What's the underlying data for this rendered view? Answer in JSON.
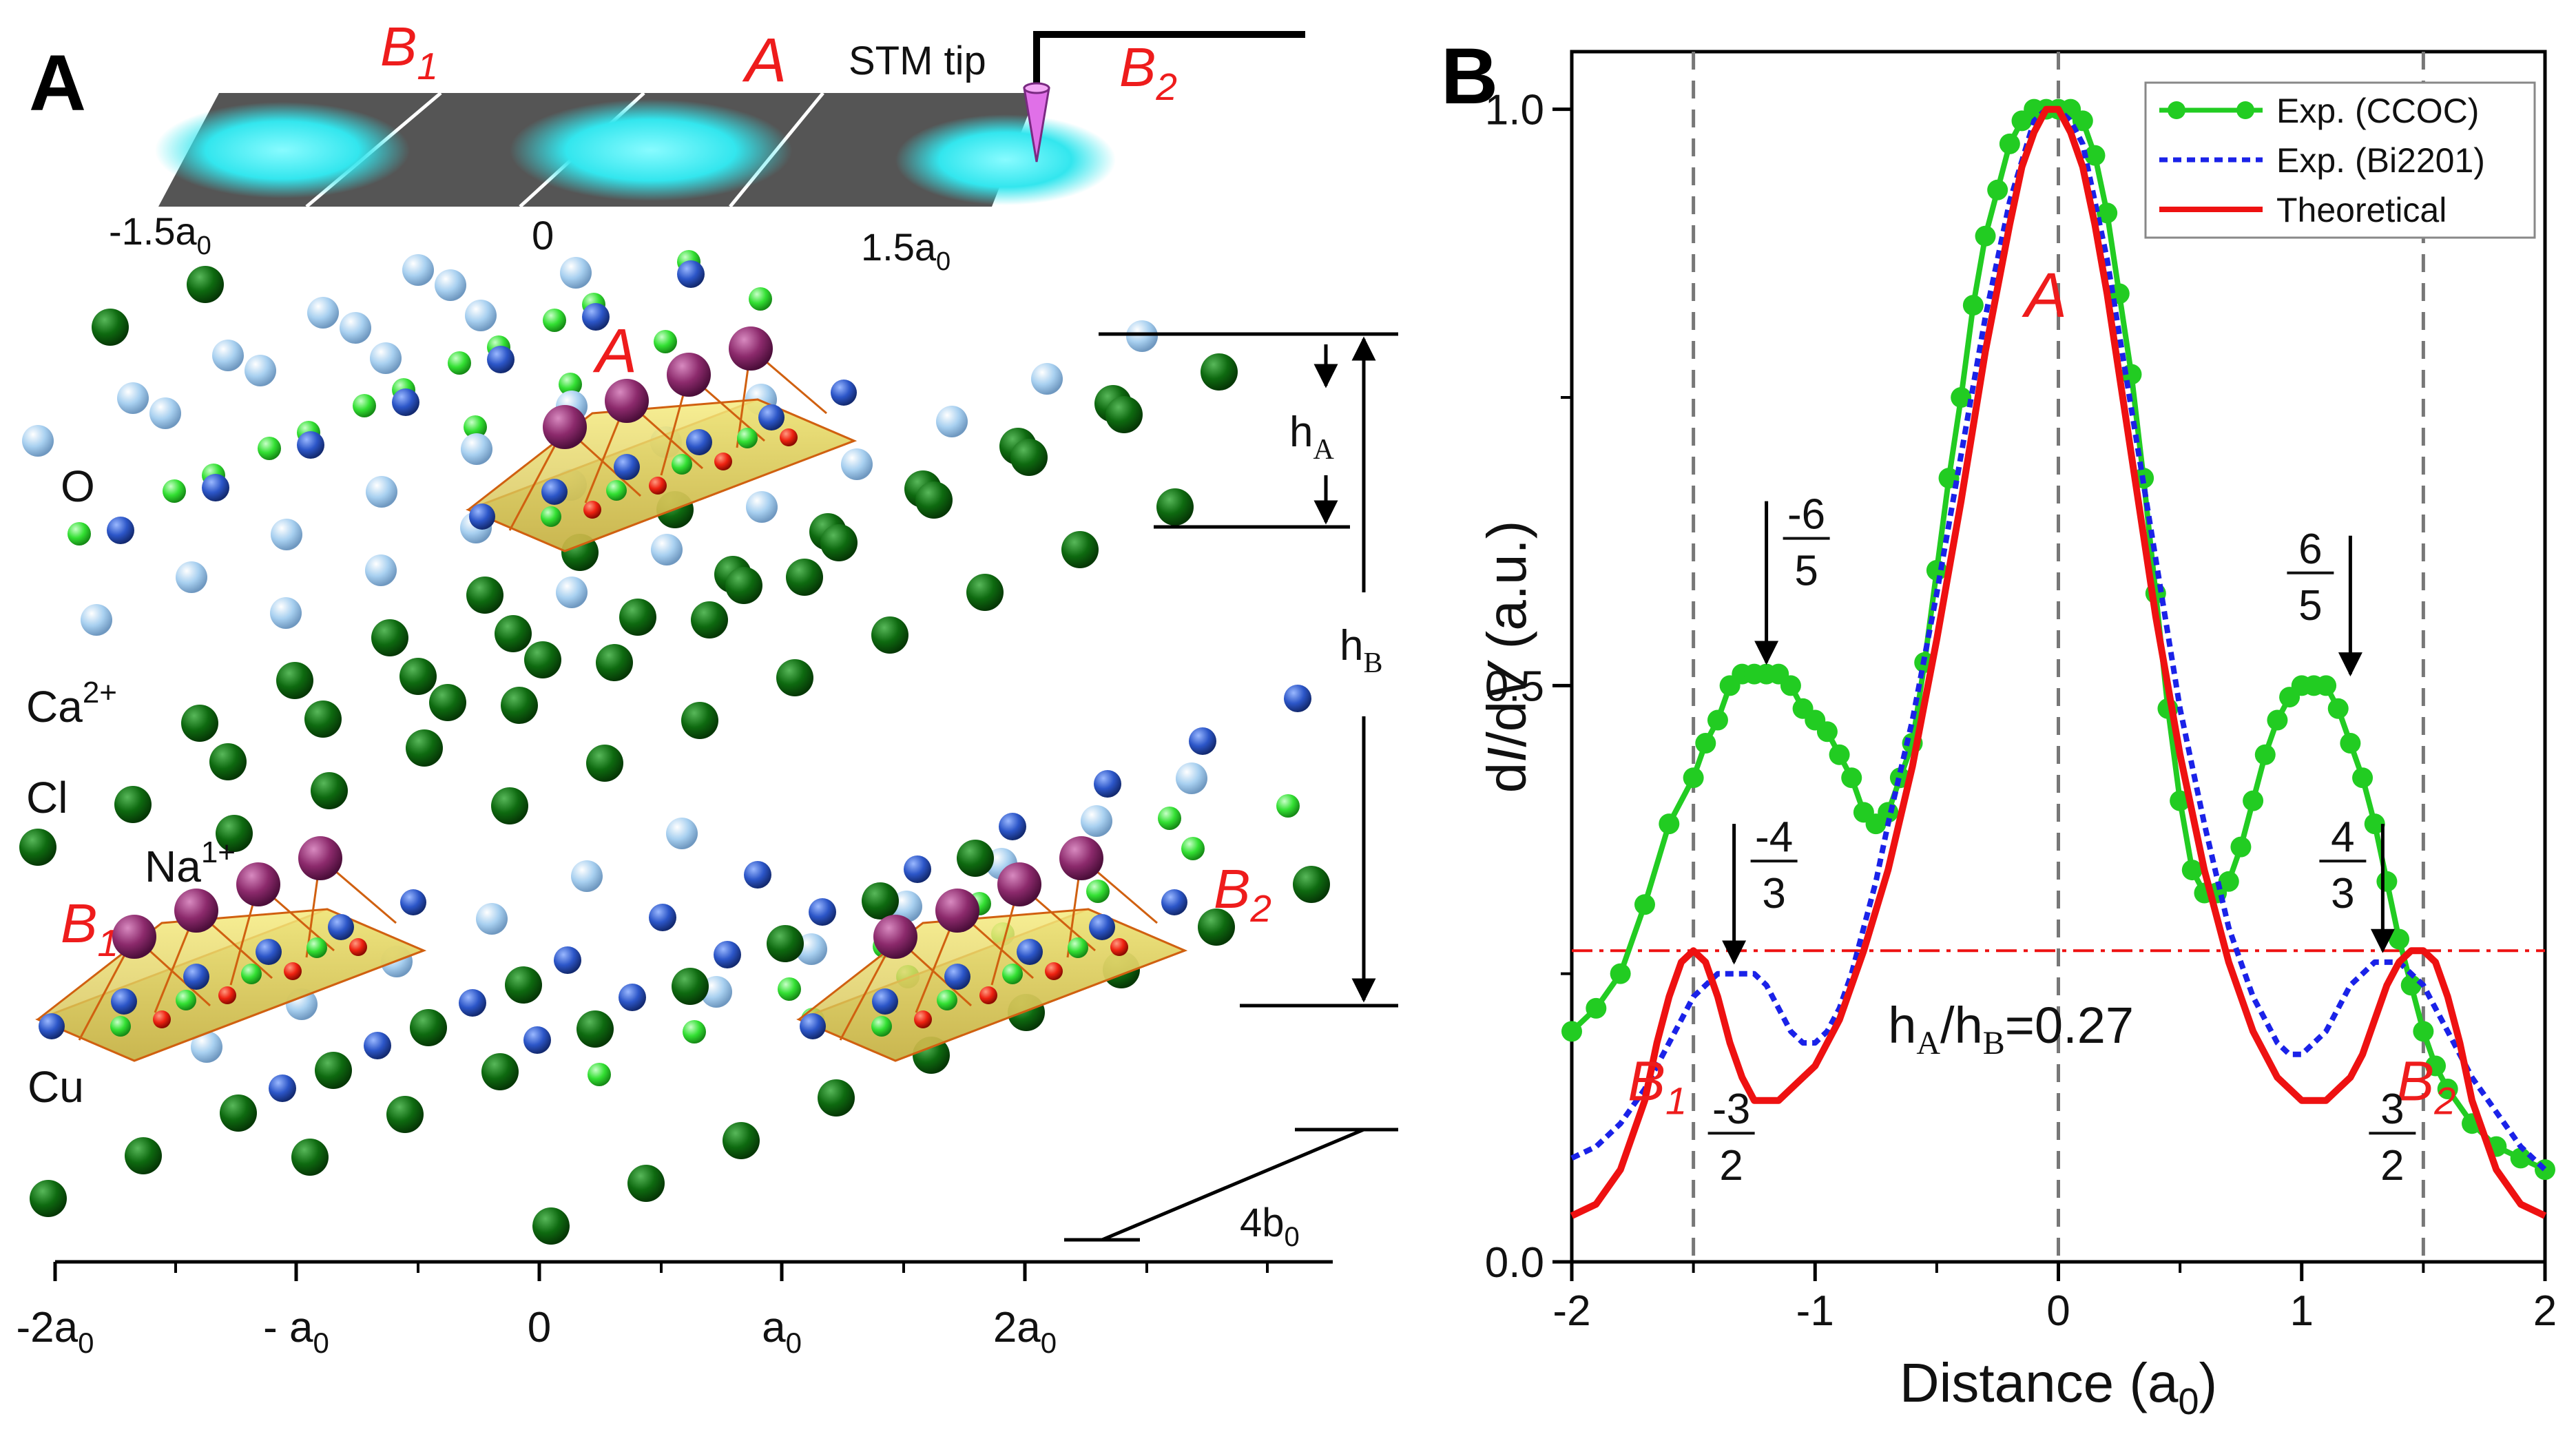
{
  "panel_a": {
    "letter": "A",
    "stm_label": "STM tip",
    "top_sites": {
      "b1": "B",
      "b1_sub": "1",
      "a": "A",
      "b2": "B",
      "b2_sub": "2"
    },
    "top_ticks": {
      "left": "-1.5a",
      "left_sub": "0",
      "center": "0",
      "right": "1.5a",
      "right_sub": "0"
    },
    "species": {
      "o": "O",
      "ca": "Ca",
      "ca_sup": "2+",
      "cl": "Cl",
      "na": "Na",
      "na_sup": "1+",
      "cu": "Cu"
    },
    "octahedra": {
      "a": "A",
      "b1": "B",
      "b1_sub": "1",
      "b2": "B",
      "b2_sub": "2"
    },
    "heights": {
      "ha": "h",
      "ha_sub": "A",
      "hb": "h",
      "hb_sub": "B"
    },
    "period": {
      "main": "4b",
      "sub": "0"
    },
    "axis_ticks": [
      {
        "main": "-2a",
        "sub": "0"
      },
      {
        "main": "- a",
        "sub": "0"
      },
      {
        "main": "0",
        "sub": ""
      },
      {
        "main": "a",
        "sub": "0"
      },
      {
        "main": "2a",
        "sub": "0"
      }
    ],
    "colors": {
      "cl": "#0e6a10",
      "o": "#a8d0f0",
      "cu": "#2c56c8",
      "ca": "#33e033",
      "na": "#8c2a6c",
      "apex": "#ee2211",
      "tip": "#e070e8",
      "spot": "#33e6ee"
    }
  },
  "chart_data": {
    "panel_letter": "B",
    "type": "line",
    "xlabel": "Distance (a",
    "xlabel_sub": "0",
    "xlabel_end": ")",
    "ylabel": "dI/dV (a.u.)",
    "ylabel_parts": [
      "d",
      "I",
      "/d",
      "V",
      " (a.u.)"
    ],
    "xlim": [
      -2,
      2
    ],
    "ylim": [
      0,
      1.05
    ],
    "xticks": [
      -2,
      -1,
      0,
      1,
      2
    ],
    "xtick_labels": [
      "-2",
      "-1",
      "0",
      "1",
      "2"
    ],
    "yticks": [
      0,
      0.5,
      1.0
    ],
    "ytick_labels": [
      "0.0",
      "0.5",
      "1.0"
    ],
    "series": [
      {
        "name": "Exp. (CCOC)",
        "color": "#22cc22",
        "style": "solid-markers",
        "x": [
          -2.0,
          -1.9,
          -1.8,
          -1.7,
          -1.6,
          -1.5,
          -1.45,
          -1.4,
          -1.35,
          -1.3,
          -1.25,
          -1.2,
          -1.15,
          -1.1,
          -1.05,
          -1.0,
          -0.95,
          -0.9,
          -0.85,
          -0.8,
          -0.75,
          -0.7,
          -0.65,
          -0.6,
          -0.55,
          -0.5,
          -0.45,
          -0.4,
          -0.35,
          -0.3,
          -0.25,
          -0.2,
          -0.15,
          -0.1,
          -0.05,
          0.0,
          0.05,
          0.1,
          0.15,
          0.2,
          0.25,
          0.3,
          0.35,
          0.4,
          0.45,
          0.5,
          0.55,
          0.6,
          0.65,
          0.7,
          0.75,
          0.8,
          0.85,
          0.9,
          0.95,
          1.0,
          1.05,
          1.1,
          1.15,
          1.2,
          1.25,
          1.3,
          1.35,
          1.4,
          1.45,
          1.5,
          1.55,
          1.6,
          1.7,
          1.8,
          1.9,
          2.0
        ],
        "y": [
          0.2,
          0.22,
          0.25,
          0.31,
          0.38,
          0.42,
          0.45,
          0.47,
          0.5,
          0.51,
          0.51,
          0.51,
          0.51,
          0.5,
          0.48,
          0.47,
          0.46,
          0.44,
          0.42,
          0.39,
          0.38,
          0.39,
          0.42,
          0.45,
          0.52,
          0.6,
          0.68,
          0.75,
          0.83,
          0.89,
          0.93,
          0.97,
          0.99,
          1.0,
          1.0,
          1.0,
          1.0,
          0.99,
          0.96,
          0.91,
          0.84,
          0.77,
          0.68,
          0.58,
          0.48,
          0.4,
          0.34,
          0.32,
          0.32,
          0.33,
          0.36,
          0.4,
          0.44,
          0.47,
          0.49,
          0.5,
          0.5,
          0.5,
          0.48,
          0.45,
          0.42,
          0.38,
          0.33,
          0.28,
          0.24,
          0.2,
          0.17,
          0.15,
          0.12,
          0.1,
          0.09,
          0.08
        ]
      },
      {
        "name": "Exp. (Bi2201)",
        "color": "#1a22e8",
        "style": "dotted",
        "x": [
          -2.0,
          -1.9,
          -1.8,
          -1.7,
          -1.6,
          -1.55,
          -1.5,
          -1.45,
          -1.4,
          -1.35,
          -1.3,
          -1.25,
          -1.2,
          -1.15,
          -1.1,
          -1.05,
          -1.0,
          -0.95,
          -0.9,
          -0.85,
          -0.8,
          -0.75,
          -0.7,
          -0.6,
          -0.5,
          -0.4,
          -0.3,
          -0.2,
          -0.1,
          -0.05,
          0.0,
          0.05,
          0.1,
          0.2,
          0.3,
          0.4,
          0.5,
          0.6,
          0.7,
          0.75,
          0.8,
          0.85,
          0.9,
          0.95,
          1.0,
          1.05,
          1.1,
          1.15,
          1.2,
          1.25,
          1.3,
          1.35,
          1.4,
          1.45,
          1.5,
          1.55,
          1.6,
          1.7,
          1.8,
          1.9,
          2.0
        ],
        "y": [
          0.09,
          0.1,
          0.12,
          0.15,
          0.19,
          0.21,
          0.23,
          0.24,
          0.25,
          0.25,
          0.25,
          0.25,
          0.24,
          0.22,
          0.2,
          0.19,
          0.19,
          0.2,
          0.22,
          0.25,
          0.29,
          0.33,
          0.38,
          0.47,
          0.58,
          0.7,
          0.82,
          0.92,
          0.99,
          1.0,
          1.0,
          0.99,
          0.97,
          0.87,
          0.74,
          0.61,
          0.48,
          0.38,
          0.29,
          0.26,
          0.23,
          0.21,
          0.19,
          0.18,
          0.18,
          0.19,
          0.2,
          0.22,
          0.24,
          0.25,
          0.26,
          0.26,
          0.26,
          0.25,
          0.24,
          0.22,
          0.2,
          0.16,
          0.13,
          0.1,
          0.08
        ]
      },
      {
        "name": "Theoretical",
        "color": "#ee1111",
        "style": "solid",
        "x": [
          -2.0,
          -1.9,
          -1.8,
          -1.7,
          -1.65,
          -1.6,
          -1.55,
          -1.5,
          -1.45,
          -1.4,
          -1.35,
          -1.3,
          -1.25,
          -1.2,
          -1.15,
          -1.1,
          -1.05,
          -1.0,
          -0.9,
          -0.8,
          -0.7,
          -0.6,
          -0.5,
          -0.4,
          -0.3,
          -0.2,
          -0.15,
          -0.1,
          -0.05,
          0.0,
          0.05,
          0.1,
          0.15,
          0.2,
          0.3,
          0.4,
          0.5,
          0.6,
          0.7,
          0.8,
          0.9,
          1.0,
          1.05,
          1.1,
          1.15,
          1.2,
          1.25,
          1.3,
          1.35,
          1.4,
          1.45,
          1.5,
          1.55,
          1.6,
          1.65,
          1.7,
          1.8,
          1.9,
          2.0
        ],
        "y": [
          0.04,
          0.05,
          0.08,
          0.14,
          0.19,
          0.23,
          0.26,
          0.27,
          0.26,
          0.23,
          0.19,
          0.16,
          0.14,
          0.14,
          0.14,
          0.15,
          0.16,
          0.17,
          0.21,
          0.27,
          0.34,
          0.43,
          0.54,
          0.66,
          0.79,
          0.9,
          0.95,
          0.98,
          1.0,
          1.0,
          0.98,
          0.95,
          0.9,
          0.84,
          0.7,
          0.56,
          0.44,
          0.34,
          0.26,
          0.2,
          0.16,
          0.14,
          0.14,
          0.14,
          0.15,
          0.16,
          0.18,
          0.21,
          0.24,
          0.26,
          0.27,
          0.27,
          0.26,
          0.23,
          0.19,
          0.14,
          0.08,
          0.05,
          0.04
        ]
      }
    ],
    "reference_line": {
      "y": 0.27,
      "color": "#ee1111",
      "style": "dash-dot"
    },
    "vlines": [
      -1.5,
      0,
      1.5
    ],
    "annotations": {
      "ratio": {
        "text": "h",
        "sub1": "A",
        "mid": "/h",
        "sub2": "B",
        "tail": "=0.27"
      },
      "peak_a": "A",
      "b1": {
        "main": "B",
        "sub": "1"
      },
      "b2": {
        "main": "B",
        "sub": "2"
      },
      "fractions": [
        {
          "num": "-6",
          "den": "5",
          "x": -1.2,
          "arrow_to": 0.52,
          "arrow_from": 0.66
        },
        {
          "num": "6",
          "den": "5",
          "x": 1.2,
          "arrow_to": 0.51,
          "arrow_from": 0.63
        },
        {
          "num": "-4",
          "den": "3",
          "x": -1.333,
          "arrow_to": 0.26,
          "arrow_from": 0.38
        },
        {
          "num": "4",
          "den": "3",
          "x": 1.333,
          "arrow_to": 0.27,
          "arrow_from": 0.38
        },
        {
          "num": "-3",
          "den": "2",
          "x": -1.5,
          "arrow_to": null,
          "arrow_from": null
        },
        {
          "num": "3",
          "den": "2",
          "x": 1.5,
          "arrow_to": null,
          "arrow_from": null
        }
      ]
    },
    "legend_position": "top-right"
  }
}
